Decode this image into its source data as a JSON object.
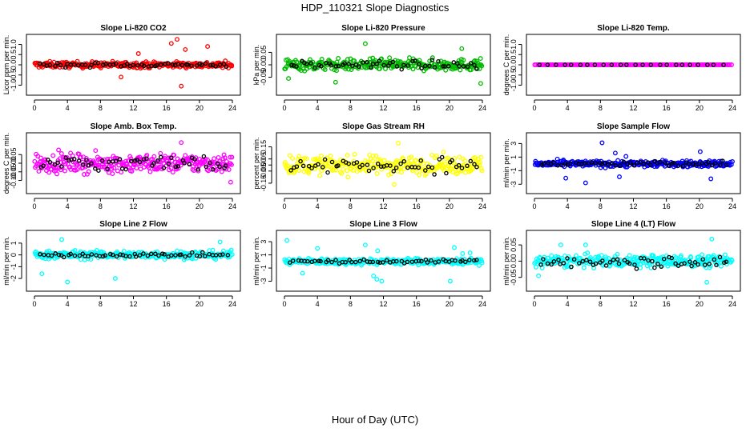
{
  "figure": {
    "title": "HDP_110321  Slope Diagnostics",
    "xlabel": "Hour of Day (UTC)"
  },
  "chart_data": [
    {
      "type": "scatter",
      "title": "Slope Li-820 CO2",
      "ylabel": "Licor ppm per min.",
      "color": "#ff0000",
      "xlim": [
        0,
        24
      ],
      "ylim": [
        -1.1,
        1.1
      ],
      "xticks": [
        "0",
        "4",
        "8",
        "12",
        "16",
        "20",
        "24"
      ],
      "yticks": [
        {
          "v": -1,
          "label": "-1.0"
        },
        {
          "v": -0.5,
          "label": "-0.5"
        },
        {
          "v": 0,
          "label": "0.0"
        },
        {
          "v": 0.5,
          "label": "0.5"
        },
        {
          "v": 1,
          "label": "1.0"
        }
      ],
      "spread": 0.14,
      "black_spread": 0.1,
      "outliers": [
        [
          12.6,
          0.55
        ],
        [
          16.6,
          1.05
        ],
        [
          17.3,
          1.25
        ],
        [
          18.3,
          0.75
        ],
        [
          17.8,
          -1.05
        ],
        [
          21,
          0.9
        ],
        [
          10.5,
          -0.6
        ]
      ]
    },
    {
      "type": "scatter",
      "title": "Slope Li-820 Pressure",
      "ylabel": "kPa per min.",
      "color": "#00bb00",
      "xlim": [
        0,
        24
      ],
      "ylim": [
        -0.09,
        0.09
      ],
      "xticks": [
        "0",
        "4",
        "8",
        "12",
        "16",
        "20",
        "24"
      ],
      "yticks": [
        {
          "v": -0.05,
          "label": "-0.05"
        },
        {
          "v": 0,
          "label": "0.00"
        },
        {
          "v": 0.05,
          "label": "0.05"
        }
      ],
      "spread": 0.022,
      "black_spread": 0.015,
      "outliers": [
        [
          9.8,
          0.085
        ],
        [
          21.5,
          0.065
        ],
        [
          23.8,
          -0.075
        ],
        [
          6.2,
          -0.07
        ],
        [
          0.5,
          -0.055
        ]
      ]
    },
    {
      "type": "scatter",
      "title": "Slope Li-820 Temp.",
      "ylabel": "degrees C per min.",
      "color": "#ff00ff",
      "xlim": [
        0,
        24
      ],
      "ylim": [
        -1.1,
        1.1
      ],
      "xticks": [
        "0",
        "4",
        "8",
        "12",
        "16",
        "20",
        "24"
      ],
      "yticks": [
        {
          "v": -1,
          "label": "-1.0"
        },
        {
          "v": -0.5,
          "label": "-0.5"
        },
        {
          "v": 0,
          "label": "0.0"
        },
        {
          "v": 0.5,
          "label": "0.5"
        },
        {
          "v": 1,
          "label": "1.0"
        }
      ],
      "spread": 0,
      "black_spread": 0,
      "outliers": []
    },
    {
      "type": "scatter",
      "title": "Slope Amb. Box Temp.",
      "ylabel": "degrees C per min.",
      "color": "#ff00ff",
      "xlim": [
        0,
        24
      ],
      "ylim": [
        -0.13,
        0.13
      ],
      "xticks": [
        "0",
        "4",
        "8",
        "12",
        "16",
        "20",
        "24"
      ],
      "yticks": [
        {
          "v": -0.1,
          "label": "-0.10"
        },
        {
          "v": -0.05,
          "label": "-0.05"
        },
        {
          "v": 0,
          "label": "0.00"
        },
        {
          "v": 0.05,
          "label": "0.05"
        }
      ],
      "spread": 0.05,
      "black_spread": 0.045,
      "outliers": [
        [
          23.8,
          -0.11
        ],
        [
          17.8,
          0.12
        ]
      ]
    },
    {
      "type": "scatter",
      "title": "Slope Gas Stream RH",
      "ylabel": "percent per min.",
      "color": "#ffff00",
      "xlim": [
        0,
        24
      ],
      "ylim": [
        -0.17,
        0.2
      ],
      "xticks": [
        "0",
        "4",
        "8",
        "12",
        "16",
        "20",
        "24"
      ],
      "yticks": [
        {
          "v": -0.15,
          "label": "-0.15"
        },
        {
          "v": -0.05,
          "label": "-0.05"
        },
        {
          "v": 0,
          "label": "0.00"
        },
        {
          "v": 0.05,
          "label": "0.05"
        },
        {
          "v": 0.15,
          "label": "0.15"
        }
      ],
      "spread": 0.07,
      "black_spread": 0.06,
      "outliers": [
        [
          13.8,
          0.18
        ],
        [
          13.3,
          -0.16
        ]
      ]
    },
    {
      "type": "scatter",
      "title": "Slope Sample Flow",
      "ylabel": "ml/min per min.",
      "color": "#0000ff",
      "xlim": [
        0,
        24
      ],
      "ylim": [
        -3.2,
        3.4
      ],
      "xticks": [
        "0",
        "4",
        "8",
        "12",
        "16",
        "20",
        "24"
      ],
      "yticks": [
        {
          "v": -3,
          "label": "-3"
        },
        {
          "v": -1,
          "label": "-1"
        },
        {
          "v": 1,
          "label": "1"
        },
        {
          "v": 3,
          "label": "3"
        }
      ],
      "spread": 0.45,
      "black_spread": 0.4,
      "outliers": [
        [
          8.2,
          3.1
        ],
        [
          6.2,
          -2.8
        ],
        [
          3.8,
          -2.1
        ],
        [
          9.8,
          1.6
        ],
        [
          11.1,
          1.1
        ],
        [
          20.1,
          1.8
        ],
        [
          10.3,
          -1.9
        ],
        [
          21.4,
          -2.2
        ]
      ]
    },
    {
      "type": "scatter",
      "title": "Slope Line 2 Flow",
      "ylabel": "ml/min per min.",
      "color": "#00ffff",
      "xlim": [
        0,
        24
      ],
      "ylim": [
        -2.4,
        1.4
      ],
      "xticks": [
        "0",
        "4",
        "8",
        "12",
        "16",
        "20",
        "24"
      ],
      "yticks": [
        {
          "v": -2,
          "label": "-2"
        },
        {
          "v": -1,
          "label": "-1"
        },
        {
          "v": 0,
          "label": "0"
        },
        {
          "v": 1,
          "label": "1"
        }
      ],
      "spread": 0.32,
      "black_spread": 0.15,
      "outliers": [
        [
          4.0,
          -2.3
        ],
        [
          9.8,
          -2.0
        ],
        [
          0.9,
          -1.6
        ],
        [
          3.3,
          1.3
        ],
        [
          22.5,
          1.1
        ]
      ]
    },
    {
      "type": "scatter",
      "title": "Slope Line 3 Flow",
      "ylabel": "ml/min per min.",
      "color": "#00ffff",
      "xlim": [
        0,
        24
      ],
      "ylim": [
        -3.3,
        3.5
      ],
      "xticks": [
        "0",
        "4",
        "8",
        "12",
        "16",
        "20",
        "24"
      ],
      "yticks": [
        {
          "v": -3,
          "label": "-3"
        },
        {
          "v": -1,
          "label": "-1"
        },
        {
          "v": 1,
          "label": "1"
        },
        {
          "v": 3,
          "label": "3"
        }
      ],
      "spread": 0.45,
      "black_spread": 0.3,
      "outliers": [
        [
          11.2,
          -2.7
        ],
        [
          11.8,
          -3.0
        ],
        [
          10.8,
          -2.2
        ],
        [
          20.1,
          -3.0
        ],
        [
          2.2,
          -1.8
        ],
        [
          0.3,
          3.2
        ],
        [
          4.0,
          2.0
        ],
        [
          9.8,
          2.5
        ],
        [
          11.3,
          1.6
        ],
        [
          20.6,
          2.1
        ],
        [
          21.6,
          1.2
        ],
        [
          22.5,
          1.3
        ]
      ]
    },
    {
      "type": "scatter",
      "title": "Slope Line 4 (LT) Flow",
      "ylabel": "ml/min per min.",
      "color": "#00ffff",
      "xlim": [
        0,
        24
      ],
      "ylim": [
        -0.068,
        0.07
      ],
      "xticks": [
        "0",
        "4",
        "8",
        "12",
        "16",
        "20",
        "24"
      ],
      "yticks": [
        {
          "v": -0.05,
          "label": "-0.05"
        },
        {
          "v": 0,
          "label": "0.00"
        },
        {
          "v": 0.05,
          "label": "0.05"
        }
      ],
      "spread": 0.018,
      "black_spread": 0.018,
      "outliers": [
        [
          20.9,
          -0.065
        ],
        [
          21.5,
          0.068
        ],
        [
          3.2,
          0.05
        ],
        [
          6.2,
          0.05
        ],
        [
          0.5,
          -0.045
        ]
      ]
    }
  ]
}
